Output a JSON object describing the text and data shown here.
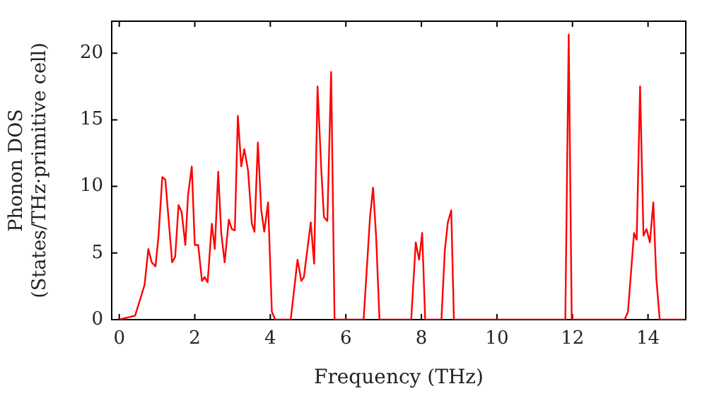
{
  "chart_data": {
    "type": "line",
    "xlabel": "Frequency (THz)",
    "ylabel": "Phonon DOS\n(States/THz·primitive cell)",
    "xlim": [
      -0.2,
      15
    ],
    "ylim": [
      0,
      22.4
    ],
    "xticks": [
      0,
      2,
      4,
      6,
      8,
      10,
      12,
      14
    ],
    "yticks": [
      0,
      5,
      10,
      15,
      20
    ],
    "grid": false,
    "legend": false,
    "marker": "none",
    "line_style": "solid",
    "series": [
      {
        "color": "#ff0000",
        "x": [
          0,
          0.42,
          0.67,
          0.77,
          0.86,
          0.96,
          1.04,
          1.14,
          1.22,
          1.4,
          1.48,
          1.57,
          1.65,
          1.75,
          1.82,
          1.92,
          2.0,
          2.09,
          2.19,
          2.26,
          2.34,
          2.45,
          2.53,
          2.62,
          2.7,
          2.79,
          2.9,
          2.98,
          3.06,
          3.14,
          3.23,
          3.31,
          3.41,
          3.51,
          3.58,
          3.67,
          3.76,
          3.84,
          3.94,
          4.04,
          4.13,
          4.54,
          4.72,
          4.82,
          4.89,
          5.07,
          5.16,
          5.25,
          5.35,
          5.42,
          5.51,
          5.61,
          5.7,
          6.47,
          6.64,
          6.72,
          6.8,
          6.89,
          7.73,
          7.85,
          7.94,
          8.02,
          8.1,
          8.53,
          8.62,
          8.7,
          8.79,
          8.86,
          11.81,
          11.9,
          11.98,
          13.38,
          13.47,
          13.63,
          13.7,
          13.79,
          13.88,
          13.96,
          14.05,
          14.14,
          14.22,
          14.31,
          14.95
        ],
        "values": [
          0,
          0.3,
          2.6,
          5.3,
          4.3,
          4.0,
          6.3,
          10.7,
          10.5,
          4.3,
          4.7,
          8.6,
          8.1,
          5.6,
          9.3,
          11.5,
          5.6,
          5.6,
          2.9,
          3.2,
          2.8,
          7.2,
          5.3,
          11.1,
          6.5,
          4.3,
          7.5,
          6.8,
          6.7,
          15.3,
          11.5,
          12.8,
          11.2,
          7.2,
          6.6,
          13.3,
          8.2,
          6.6,
          8.8,
          0.6,
          0,
          0,
          4.5,
          2.9,
          3.2,
          7.3,
          4.2,
          17.5,
          11.2,
          7.7,
          7.4,
          18.6,
          0,
          0,
          7.7,
          9.9,
          6.3,
          0,
          0,
          5.8,
          4.5,
          6.5,
          0,
          0,
          5.2,
          7.3,
          8.2,
          0,
          0,
          21.4,
          0,
          0,
          0.6,
          6.5,
          6.0,
          17.5,
          6.3,
          6.8,
          5.8,
          8.8,
          3.1,
          0,
          0
        ]
      }
    ]
  }
}
